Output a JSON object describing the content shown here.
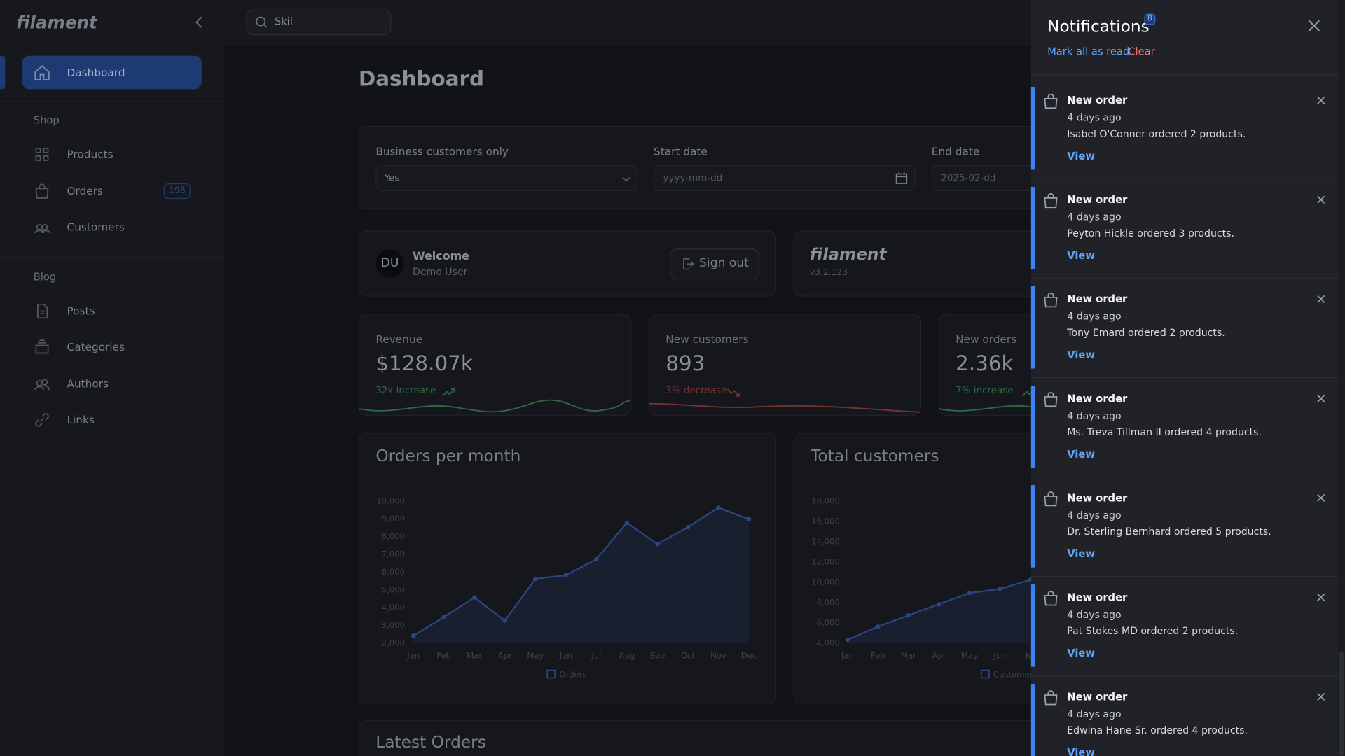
{
  "sidebar": {
    "brand": "filament",
    "dashboard": "Dashboard",
    "groups": [
      {
        "title": "Shop",
        "items": [
          {
            "label": "Products"
          },
          {
            "label": "Orders",
            "badge": 198
          },
          {
            "label": "Customers"
          }
        ]
      },
      {
        "title": "Blog",
        "items": [
          {
            "label": "Posts"
          },
          {
            "label": "Categories"
          },
          {
            "label": "Authors"
          },
          {
            "label": "Links"
          }
        ]
      }
    ]
  },
  "search": "Skil",
  "header": {
    "title": "Dashboard"
  },
  "filters": [
    {
      "label": "Business customers only",
      "value": "Yes"
    },
    {
      "label": "Start date",
      "value": "yyyy-mm-dd"
    },
    {
      "label": "End date",
      "value": "2025-02-dd"
    }
  ],
  "account": {
    "avatar": "DU",
    "greeting": "Welcome",
    "name": "Demo User",
    "action": "Sign out"
  },
  "info": {
    "brand": "filament",
    "version": "v3.2.123"
  },
  "stats": [
    {
      "label": "Revenue",
      "value": "$128.07k",
      "description": "32k increase",
      "trend": "up"
    },
    {
      "label": "New customers",
      "value": "893",
      "description": "3% decrease",
      "trend": "down"
    },
    {
      "label": "New orders",
      "value": "2.36k",
      "description": "7% increase",
      "trend": "up"
    }
  ],
  "charts": [
    {
      "type": "line",
      "title": "Orders per month",
      "categories": [
        "Jan",
        "Feb",
        "Mar",
        "Apr",
        "May",
        "Jun",
        "Jul",
        "Aug",
        "Sep",
        "Oct",
        "Nov",
        "Dec"
      ],
      "series": [
        {
          "name": "Orders",
          "color": "#2a4684",
          "values": [
            2400,
            3450,
            4550,
            3250,
            5600,
            5800,
            6700,
            8750,
            7550,
            8500,
            9600,
            8950
          ]
        }
      ],
      "ylim": [
        2000,
        10000
      ],
      "yticks": [
        {
          "value": 2000,
          "label": "2,000"
        },
        {
          "value": 3000,
          "label": "3,000"
        },
        {
          "value": 4000,
          "label": "4,000"
        },
        {
          "value": 5000,
          "label": "5,000"
        },
        {
          "value": 6000,
          "label": "6,000"
        },
        {
          "value": 7000,
          "label": "7,000"
        },
        {
          "value": 8000,
          "label": "8,000"
        },
        {
          "value": 9000,
          "label": "9,000"
        },
        {
          "value": 10000,
          "label": "10,000"
        }
      ]
    },
    {
      "type": "line",
      "title": "Total customers",
      "categories": [
        "Jan",
        "Feb",
        "Mar",
        "Apr",
        "May",
        "Jun",
        "Jul"
      ],
      "series": [
        {
          "name": "Customers",
          "color": "#2a4684",
          "values": [
            4300,
            5600,
            6700,
            7800,
            8900,
            9300,
            10200
          ]
        }
      ],
      "ylim": [
        4000,
        18000
      ],
      "yticks": [
        {
          "value": 4000,
          "label": "4,000"
        },
        {
          "value": 6000,
          "label": "6,000"
        },
        {
          "value": 8000,
          "label": "8,000"
        },
        {
          "value": 10000,
          "label": "10,000"
        },
        {
          "value": 12000,
          "label": "12,000"
        },
        {
          "value": 14000,
          "label": "14,000"
        },
        {
          "value": 16000,
          "label": "16,000"
        },
        {
          "value": 18000,
          "label": "18,000"
        }
      ]
    }
  ],
  "latest": {
    "title": "Latest Orders"
  },
  "notifications": {
    "title": "Notifications",
    "count": 8,
    "mark_all": "Mark all as read",
    "clear": "Clear",
    "items": [
      {
        "title": "New order",
        "time": "4 days ago",
        "body": "Isabel O'Conner ordered 2 products.",
        "action": "View"
      },
      {
        "title": "New order",
        "time": "4 days ago",
        "body": "Peyton Hickle ordered 3 products.",
        "action": "View"
      },
      {
        "title": "New order",
        "time": "4 days ago",
        "body": "Tony Emard ordered 2 products.",
        "action": "View"
      },
      {
        "title": "New order",
        "time": "4 days ago",
        "body": "Ms. Treva Tillman II ordered 4 products.",
        "action": "View"
      },
      {
        "title": "New order",
        "time": "4 days ago",
        "body": "Dr. Sterling Bernhard ordered 5 products.",
        "action": "View"
      },
      {
        "title": "New order",
        "time": "4 days ago",
        "body": "Pat Stokes MD ordered 2 products.",
        "action": "View"
      },
      {
        "title": "New order",
        "time": "4 days ago",
        "body": "Edwina Hane Sr. ordered 4 products.",
        "action": "View"
      }
    ]
  }
}
